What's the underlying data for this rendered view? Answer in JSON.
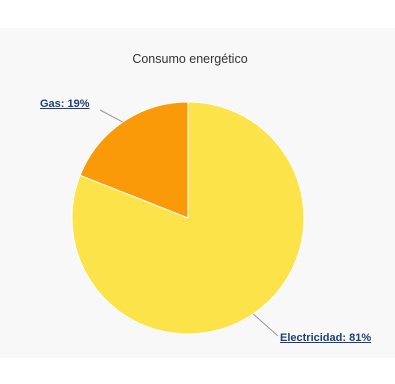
{
  "chart_data": {
    "type": "pie",
    "title": "Consumo energético",
    "slices": [
      {
        "label": "Electricidad",
        "value": 81,
        "display": "Electricidad: 81%",
        "color": "#fde34a"
      },
      {
        "label": "Gas",
        "value": 19,
        "display": "Gas: 19%",
        "color": "#fb9a08"
      }
    ]
  }
}
